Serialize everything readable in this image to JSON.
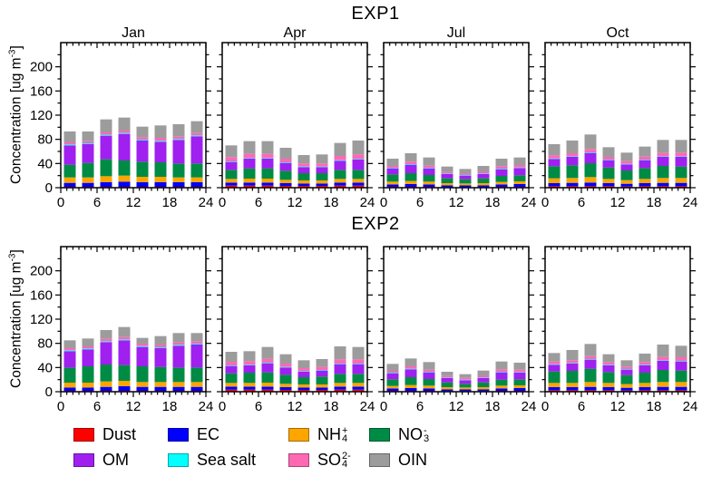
{
  "chart_data": {
    "type": "bar",
    "stacked": true,
    "axis": {
      "xticks": [
        0,
        6,
        12,
        18,
        24
      ],
      "yticks": [
        0,
        40,
        80,
        120,
        160,
        200
      ],
      "xlim": [
        0,
        24
      ],
      "ylim": [
        0,
        240
      ],
      "x_minor_step": 1,
      "y_minor_step": 20,
      "ylabel_main": "Concentration [ug m",
      "ylabel_sup": "-3",
      "ylabel_end": "]"
    },
    "species": [
      {
        "key": "dust",
        "label": "Dust",
        "color": "#ff0000"
      },
      {
        "key": "ec",
        "label": "EC",
        "color": "#0000ff"
      },
      {
        "key": "nh4",
        "label": "NH",
        "stack_sup": "+",
        "stack_sub": "4",
        "color": "#ffa500"
      },
      {
        "key": "no3",
        "label": "NO",
        "stack_sup": "-",
        "stack_sub": "3",
        "color": "#008b45"
      },
      {
        "key": "om",
        "label": "OM",
        "color": "#a020f0"
      },
      {
        "key": "seasalt",
        "label": "Sea salt",
        "color": "#00ffff"
      },
      {
        "key": "so4",
        "label": "SO",
        "stack_sup": "2-",
        "stack_sub": "4",
        "color": "#ff69b4"
      },
      {
        "key": "oin",
        "label": "OIN",
        "color": "#9c9c9c"
      }
    ],
    "legend_rows": [
      [
        "dust",
        "ec",
        "nh4",
        "no3"
      ],
      [
        "om",
        "seasalt",
        "so4",
        "oin"
      ]
    ],
    "rows": [
      {
        "title": "EXP1",
        "show_month_labels": true,
        "panels": [
          {
            "month": "Jan",
            "series": {
              "dust": [
                1.5,
                1.5,
                1.5,
                1.5,
                1.5,
                1.5,
                1.5,
                1.5
              ],
              "ec": [
                6.5,
                6.5,
                7.5,
                8.5,
                7.5,
                7.5,
                7.5,
                7.5
              ],
              "nh4": [
                9,
                9,
                10,
                10,
                9,
                9,
                8,
                8
              ],
              "no3": [
                21,
                24,
                28,
                25,
                25,
                24,
                23,
                23
              ],
              "om": [
                32,
                31,
                39,
                44,
                35,
                34,
                39,
                45
              ],
              "seasalt": [
                1.5,
                1.5,
                1.5,
                1.5,
                1.5,
                1.5,
                1.5,
                1.5
              ],
              "so4": [
                3.5,
                3.5,
                4,
                4,
                4,
                5,
                4,
                4
              ],
              "oin": [
                18,
                16,
                21.5,
                21.5,
                17.5,
                20.5,
                20.5,
                19.5
              ]
            }
          },
          {
            "month": "Apr",
            "series": {
              "dust": [
                3.5,
                3.5,
                3.5,
                3,
                3,
                3,
                3.5,
                3.5
              ],
              "ec": [
                5,
                5,
                5,
                4.5,
                4,
                4,
                5,
                5
              ],
              "nh4": [
                6,
                6.5,
                6.5,
                5.5,
                5,
                5,
                6,
                6
              ],
              "no3": [
                15,
                17,
                17,
                15,
                12,
                12,
                15,
                15
              ],
              "om": [
                13,
                16,
                16,
                13,
                10,
                10,
                15,
                17
              ],
              "seasalt": [
                1,
                1,
                1,
                1,
                1,
                1,
                1,
                1
              ],
              "so4": [
                7,
                7,
                7,
                6,
                5,
                5,
                7,
                7.5
              ],
              "oin": [
                19.5,
                21,
                21,
                18,
                14,
                15,
                21.5,
                23
              ]
            }
          },
          {
            "month": "Jul",
            "series": {
              "dust": [
                1.5,
                1.5,
                1.5,
                1,
                1,
                1,
                1.5,
                1.5
              ],
              "ec": [
                4,
                4.5,
                4,
                3,
                3,
                3,
                4,
                4.5
              ],
              "nh4": [
                4.5,
                5,
                4.5,
                3.5,
                3,
                3.5,
                4,
                4.5
              ],
              "no3": [
                12,
                13,
                11,
                8,
                7,
                8,
                10,
                10
              ],
              "om": [
                10,
                14,
                11,
                7,
                6,
                7,
                11,
                12
              ],
              "seasalt": [
                1,
                1,
                1,
                1,
                1,
                1,
                1,
                1
              ],
              "so4": [
                3,
                4,
                3.5,
                3,
                3,
                3.5,
                4,
                4
              ],
              "oin": [
                12,
                14,
                13.5,
                8.5,
                7,
                9,
                12.5,
                12.5
              ]
            }
          },
          {
            "month": "Oct",
            "series": {
              "dust": [
                2.5,
                2.5,
                2.5,
                2.5,
                2,
                2.5,
                2.5,
                2.5
              ],
              "ec": [
                5,
                5.5,
                6,
                5,
                4.5,
                5,
                5.5,
                5.5
              ],
              "nh4": [
                8,
                8,
                9,
                7,
                6,
                7,
                8,
                8
              ],
              "no3": [
                20,
                21,
                23,
                19,
                16,
                18,
                20,
                19
              ],
              "om": [
                12,
                14,
                17,
                12,
                10,
                13,
                15,
                16
              ],
              "seasalt": [
                1,
                1,
                1,
                1,
                1,
                1,
                1,
                1
              ],
              "so4": [
                5,
                5,
                5.5,
                4.5,
                4.5,
                5,
                5.5,
                6
              ],
              "oin": [
                18.5,
                21,
                24,
                16,
                14,
                16.5,
                21.5,
                21
              ]
            }
          }
        ]
      },
      {
        "title": "EXP2",
        "show_month_labels": false,
        "panels": [
          {
            "month": "Jan",
            "series": {
              "dust": [
                1.5,
                1.5,
                1.5,
                1.5,
                1.5,
                1.5,
                1.5,
                1.5
              ],
              "ec": [
                5.5,
                5.5,
                6.5,
                7.5,
                6.5,
                6.5,
                6.5,
                6.5
              ],
              "nh4": [
                8,
                8,
                9,
                9,
                8,
                8,
                8,
                8
              ],
              "no3": [
                25,
                27,
                28,
                26,
                26,
                25,
                24,
                24
              ],
              "om": [
                27,
                28,
                37,
                41,
                32,
                31,
                36,
                38
              ],
              "seasalt": [
                1.5,
                1.5,
                1.5,
                1.5,
                1.5,
                1.5,
                1.5,
                1.5
              ],
              "so4": [
                3.5,
                3.5,
                4,
                4,
                4,
                4.5,
                4,
                4
              ],
              "oin": [
                13,
                13,
                14.5,
                16.5,
                9.5,
                14,
                15.5,
                13.5
              ]
            }
          },
          {
            "month": "Apr",
            "series": {
              "dust": [
                3.5,
                3.5,
                3.5,
                3,
                3,
                3,
                3.5,
                3.5
              ],
              "ec": [
                5,
                5,
                5,
                4.5,
                4,
                4,
                5,
                5
              ],
              "nh4": [
                6,
                6,
                6.5,
                5.5,
                5,
                5,
                6,
                6
              ],
              "no3": [
                16,
                17,
                17,
                15,
                12,
                13,
                15,
                15
              ],
              "om": [
                12,
                12,
                15,
                12,
                9,
                10,
                16,
                16
              ],
              "seasalt": [
                1,
                1,
                1,
                1,
                1,
                1,
                1,
                1
              ],
              "so4": [
                6,
                6,
                6.5,
                5.5,
                5,
                5,
                7,
                7
              ],
              "oin": [
                16.5,
                16.5,
                19.5,
                15.5,
                13,
                13,
                21.5,
                20.5
              ]
            }
          },
          {
            "month": "Jul",
            "series": {
              "dust": [
                1.5,
                1.5,
                1.5,
                1,
                1,
                1,
                1.5,
                1.5
              ],
              "ec": [
                4,
                4.5,
                4,
                3,
                3,
                3,
                4,
                4.5
              ],
              "nh4": [
                4,
                5,
                4.5,
                3.5,
                3,
                3.5,
                4.5,
                4.5
              ],
              "no3": [
                11,
                13,
                11,
                8,
                6,
                8,
                10,
                10
              ],
              "om": [
                10,
                13,
                11,
                7,
                6,
                7,
                12,
                11
              ],
              "seasalt": [
                1,
                1,
                1,
                1,
                1,
                1,
                1,
                1
              ],
              "so4": [
                3,
                4,
                3.5,
                3,
                3,
                3.5,
                4,
                4
              ],
              "oin": [
                11.5,
                13,
                12.5,
                6.5,
                6,
                8,
                13,
                11.5
              ]
            }
          },
          {
            "month": "Oct",
            "series": {
              "dust": [
                2.5,
                2.5,
                2.5,
                2.5,
                2,
                2.5,
                2.5,
                2.5
              ],
              "ec": [
                5,
                5,
                5.5,
                5,
                4.5,
                5,
                5.5,
                5.5
              ],
              "nh4": [
                7,
                7,
                8,
                7,
                6,
                7,
                8,
                8
              ],
              "no3": [
                19,
                20,
                22,
                18,
                15,
                17,
                20,
                19
              ],
              "om": [
                11,
                12,
                15,
                11,
                9,
                12,
                15,
                15
              ],
              "seasalt": [
                1,
                1,
                1,
                1,
                1,
                1,
                1,
                1
              ],
              "so4": [
                4.5,
                4.5,
                5,
                4.5,
                4,
                4.5,
                5.5,
                6
              ],
              "oin": [
                14,
                17,
                20,
                13,
                10.5,
                14,
                20.5,
                19
              ]
            }
          }
        ]
      }
    ]
  }
}
